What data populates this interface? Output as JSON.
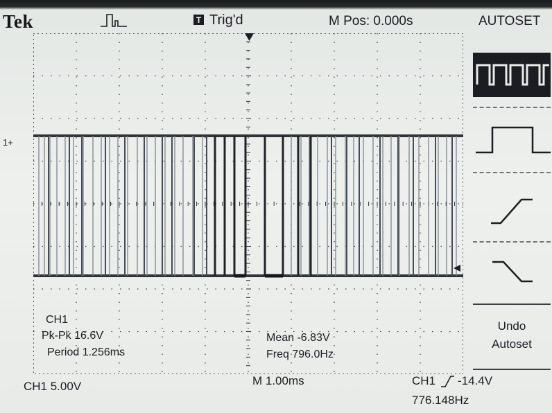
{
  "header": {
    "brand": "Tek",
    "acquisition_icon": "pulse-waveform-icon",
    "trigger_badge": "T",
    "trigger_status": "Trig'd",
    "horizontal_position": "M Pos: 0.000s"
  },
  "channel_marker": "1+",
  "autoset_menu": {
    "title": "AUTOSET",
    "options": [
      {
        "icon": "multi-cycle-square-wave-icon",
        "selected": true
      },
      {
        "icon": "single-cycle-square-wave-icon",
        "selected": false
      },
      {
        "icon": "rising-edge-icon",
        "selected": false
      },
      {
        "icon": "falling-edge-icon",
        "selected": false
      }
    ],
    "undo_line1": "Undo",
    "undo_line2": "Autoset"
  },
  "measurements_left": {
    "channel": "CH1",
    "pk_pk": "Pk-Pk 16.6V",
    "period": "Period 1.256ms"
  },
  "measurements_right": {
    "mean": "Mean -6.83V",
    "freq": "Freq 796.0Hz"
  },
  "footer": {
    "ch1_scale": "CH1  5.00V",
    "timebase": "M 1.00ms",
    "trigger_source": "CH1",
    "trigger_level": "-14.4V",
    "trigger_frequency": "776.148Hz"
  },
  "colors": {
    "screen_background": "#e9ece9",
    "trace": "#2a2d33",
    "selected_menu_background": "#1b1d22"
  }
}
